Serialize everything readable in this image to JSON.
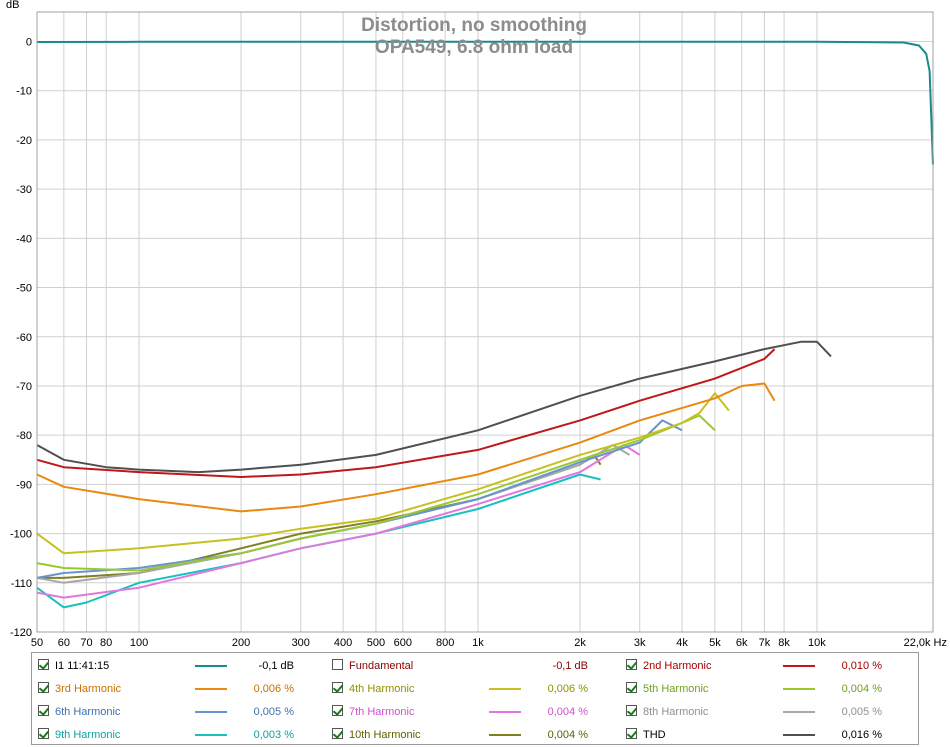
{
  "chart_data": {
    "type": "line",
    "title": "Distortion, no smoothing",
    "subtitle": "OPA549, 6.8 ohm load",
    "ylabel": "dB",
    "xlabel": "",
    "x_unit_label": "Hz",
    "x_scale": "log",
    "xlim": [
      50,
      22000
    ],
    "ylim": [
      -120,
      6
    ],
    "grid": true,
    "y_ticks": [
      0,
      -10,
      -20,
      -30,
      -40,
      -50,
      -60,
      -70,
      -80,
      -90,
      -100,
      -110,
      -120
    ],
    "y_tick_labels": [
      "0",
      "-10",
      "-20",
      "-30",
      "-40",
      "-50",
      "-60",
      "-70",
      "-80",
      "-90",
      "-100",
      "-110",
      "-120"
    ],
    "x_ticks": [
      50,
      60,
      70,
      80,
      100,
      200,
      300,
      400,
      500,
      600,
      800,
      1000,
      2000,
      3000,
      4000,
      5000,
      6000,
      7000,
      8000,
      10000,
      22000
    ],
    "x_tick_labels": [
      "50",
      "60",
      "70",
      "80",
      "100",
      "200",
      "300",
      "400",
      "500",
      "600",
      "800",
      "1k",
      "2k",
      "3k",
      "4k",
      "5k",
      "6k",
      "7k",
      "8k",
      "10k",
      "22,0k Hz"
    ],
    "series": [
      {
        "name": "I1 11:41:15",
        "color": "#1a8a8a",
        "width": 2,
        "x": [
          50,
          100,
          1000,
          10000,
          18000,
          20000,
          21000,
          21500,
          22000
        ],
        "y": [
          -0.1,
          -0.05,
          -0.05,
          -0.05,
          -0.2,
          -0.8,
          -2.5,
          -6,
          -25
        ]
      },
      {
        "name": "THD",
        "color": "#505050",
        "width": 2,
        "x": [
          50,
          60,
          80,
          100,
          150,
          200,
          300,
          500,
          1000,
          2000,
          3000,
          5000,
          7000,
          9000,
          10000,
          11000
        ],
        "y": [
          -82,
          -85,
          -86.5,
          -87,
          -87.5,
          -87,
          -86,
          -84,
          -79,
          -72,
          -68.5,
          -65,
          -62.5,
          -61,
          -61,
          -64
        ]
      },
      {
        "name": "2nd Harmonic",
        "color": "#c01818",
        "width": 2,
        "x": [
          50,
          60,
          100,
          200,
          300,
          500,
          1000,
          2000,
          3000,
          5000,
          7000,
          7500
        ],
        "y": [
          -85,
          -86.5,
          -87.5,
          -88.5,
          -88,
          -86.5,
          -83,
          -77,
          -73,
          -68.5,
          -64.5,
          -62.5
        ]
      },
      {
        "name": "3rd Harmonic",
        "color": "#e88a10",
        "width": 2,
        "x": [
          50,
          60,
          100,
          200,
          300,
          500,
          1000,
          2000,
          3000,
          5000,
          6000,
          7000,
          7500
        ],
        "y": [
          -88,
          -90.5,
          -93,
          -95.5,
          -94.5,
          -92,
          -88,
          -81.5,
          -77,
          -72.5,
          -70,
          -69.5,
          -73
        ]
      },
      {
        "name": "4th Harmonic",
        "color": "#c8c020",
        "width": 2,
        "x": [
          50,
          60,
          100,
          200,
          300,
          500,
          1000,
          2000,
          3000,
          4000,
          4500,
          5000,
          5500
        ],
        "y": [
          -100,
          -104,
          -103,
          -101,
          -99,
          -97,
          -91,
          -84,
          -80.5,
          -77.5,
          -75.5,
          -71.5,
          -75
        ]
      },
      {
        "name": "5th Harmonic",
        "color": "#9ac830",
        "width": 2,
        "x": [
          50,
          60,
          100,
          200,
          300,
          500,
          1000,
          2000,
          3000,
          4000,
          4500,
          5000
        ],
        "y": [
          -106,
          -107,
          -107.5,
          -104,
          -101,
          -98,
          -92,
          -85,
          -81,
          -77.5,
          -76,
          -79
        ]
      },
      {
        "name": "6th Harmonic",
        "color": "#6894d0",
        "width": 2,
        "x": [
          50,
          60,
          100,
          200,
          300,
          500,
          1000,
          2000,
          3000,
          3500,
          4000
        ],
        "y": [
          -109,
          -108,
          -107,
          -104,
          -101,
          -98,
          -93,
          -85.5,
          -81.5,
          -77,
          -79
        ]
      },
      {
        "name": "7th Harmonic",
        "color": "#e078e0",
        "width": 2,
        "x": [
          50,
          60,
          100,
          200,
          300,
          500,
          1000,
          2000,
          2700,
          3000
        ],
        "y": [
          -112,
          -113,
          -111,
          -106,
          -103,
          -100,
          -94,
          -87.5,
          -82,
          -84
        ]
      },
      {
        "name": "8th Harmonic",
        "color": "#a8a8a8",
        "width": 2,
        "x": [
          50,
          60,
          100,
          200,
          300,
          500,
          1000,
          2000,
          2500,
          2800
        ],
        "y": [
          -109,
          -110,
          -108,
          -104,
          -101,
          -98,
          -93,
          -86,
          -82,
          -84
        ]
      },
      {
        "name": "9th Harmonic",
        "color": "#18c0c0",
        "width": 2,
        "x": [
          50,
          60,
          70,
          100,
          200,
          300,
          500,
          1000,
          2000,
          2300
        ],
        "y": [
          -111,
          -115,
          -114,
          -110,
          -106,
          -103,
          -100,
          -95,
          -88,
          -89
        ]
      },
      {
        "name": "10th Harmonic",
        "color": "#808020",
        "width": 2,
        "x": [
          50,
          60,
          100,
          200,
          300,
          500,
          1000,
          2000,
          2200,
          2300
        ],
        "y": [
          -109,
          -109,
          -108,
          -103,
          -100,
          -97.5,
          -93,
          -86,
          -84,
          -86
        ]
      }
    ]
  },
  "legend": {
    "rows": [
      [
        {
          "label": "I1 11:41:15",
          "value": "-0,1 dB",
          "checked": true,
          "color": "#1a8a8a",
          "label_color": "#000000"
        },
        {
          "label": "Fundamental",
          "value": "-0,1 dB",
          "checked": false,
          "color": "#ffffff",
          "label_color": "#8a0000"
        },
        {
          "label": "2nd Harmonic",
          "value": "0,010 %",
          "checked": true,
          "color": "#c01818",
          "label_color": "#a80000"
        }
      ],
      [
        {
          "label": "3rd Harmonic",
          "value": "0,006 %",
          "checked": true,
          "color": "#e88a10",
          "label_color": "#c87000"
        },
        {
          "label": "4th Harmonic",
          "value": "0,006 %",
          "checked": true,
          "color": "#c8c020",
          "label_color": "#909000"
        },
        {
          "label": "5th Harmonic",
          "value": "0,004 %",
          "checked": true,
          "color": "#9ac830",
          "label_color": "#70a020"
        }
      ],
      [
        {
          "label": "6th Harmonic",
          "value": "0,005 %",
          "checked": true,
          "color": "#6894d0",
          "label_color": "#4070b0"
        },
        {
          "label": "7th Harmonic",
          "value": "0,004 %",
          "checked": true,
          "color": "#e078e0",
          "label_color": "#d050d0"
        },
        {
          "label": "8th Harmonic",
          "value": "0,005 %",
          "checked": true,
          "color": "#a8a8a8",
          "label_color": "#909090"
        }
      ],
      [
        {
          "label": "9th Harmonic",
          "value": "0,003 %",
          "checked": true,
          "color": "#18c0c0",
          "label_color": "#10a0a0"
        },
        {
          "label": "10th Harmonic",
          "value": "0,004 %",
          "checked": true,
          "color": "#808020",
          "label_color": "#606000"
        },
        {
          "label": "THD",
          "value": "0,016 %",
          "checked": true,
          "color": "#505050",
          "label_color": "#000000"
        }
      ]
    ]
  }
}
